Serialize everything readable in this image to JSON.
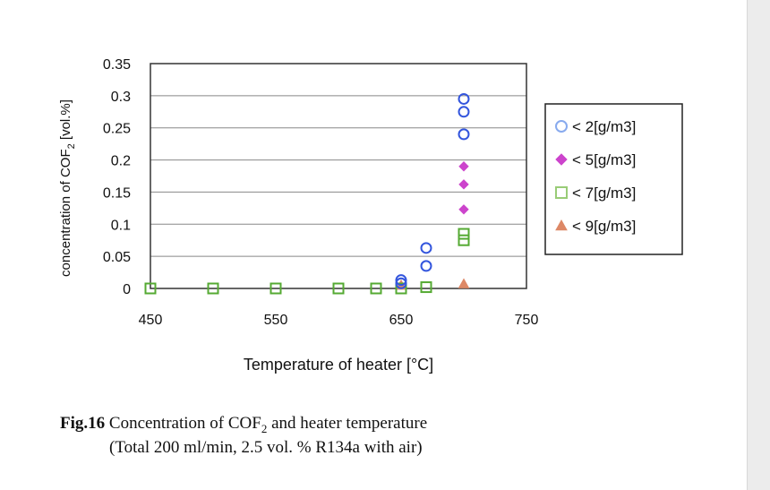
{
  "chart_data": {
    "type": "scatter",
    "xlabel": "Temperature of heater [°C]",
    "ylabel_main": "concentration of COF",
    "ylabel_sub": "2",
    "ylabel_unit": " [vol.%]",
    "xlim": [
      450,
      750
    ],
    "ylim": [
      0,
      0.35
    ],
    "x_ticks": [
      "450",
      "550",
      "650",
      "750"
    ],
    "y_ticks": [
      "0",
      "0.05",
      "0.1",
      "0.15",
      "0.2",
      "0.25",
      "0.3",
      "0.35"
    ],
    "grid": "horizontal",
    "legend_position": "right",
    "series": [
      {
        "name": "< 2[g/m3]",
        "marker": "circle",
        "color": "#3355dd",
        "legend_color": "#88aaee",
        "points": [
          [
            650,
            0.013
          ],
          [
            650,
            0.008
          ],
          [
            670,
            0.063
          ],
          [
            670,
            0.035
          ],
          [
            700,
            0.295
          ],
          [
            700,
            0.275
          ],
          [
            700,
            0.24
          ]
        ]
      },
      {
        "name": "< 5[g/m3]",
        "marker": "diamond",
        "color": "#cc44cc",
        "legend_color": "#cc44cc",
        "points": [
          [
            700,
            0.19
          ],
          [
            700,
            0.162
          ],
          [
            700,
            0.123
          ]
        ]
      },
      {
        "name": "< 7[g/m3]",
        "marker": "square",
        "color": "#55aa33",
        "legend_color": "#99cc77",
        "points": [
          [
            450,
            0
          ],
          [
            500,
            0
          ],
          [
            550,
            0
          ],
          [
            600,
            0
          ],
          [
            630,
            0
          ],
          [
            650,
            0
          ],
          [
            670,
            0.002
          ],
          [
            700,
            0.085
          ],
          [
            700,
            0.075
          ]
        ]
      },
      {
        "name": "< 9[g/m3]",
        "marker": "triangle",
        "color": "#dd8866",
        "legend_color": "#dd8866",
        "points": [
          [
            650,
            0.005
          ],
          [
            700,
            0.007
          ]
        ]
      }
    ]
  },
  "caption": {
    "fig_label": "Fig.16",
    "line1_text": " Concentration of COF",
    "line1_sub": "2",
    "line1_end": " and heater temperature",
    "line2": "(Total 200 ml/min, 2.5 vol. % R134a with air)"
  }
}
